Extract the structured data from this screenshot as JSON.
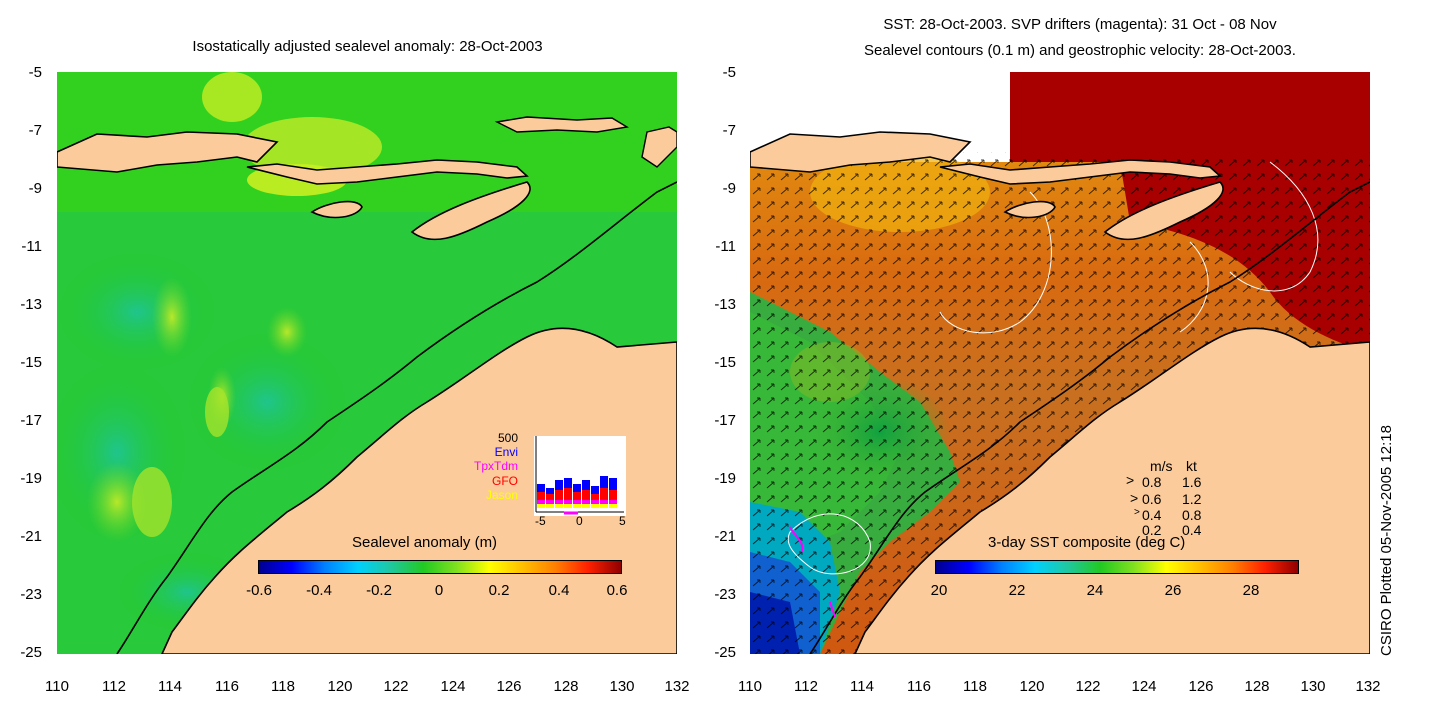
{
  "left_panel": {
    "title": "Isostatically adjusted sealevel anomaly: 28-Oct-2003",
    "y_ticks": [
      "-5",
      "-7",
      "-9",
      "-11",
      "-13",
      "-15",
      "-17",
      "-19",
      "-21",
      "-23",
      "-25"
    ],
    "x_ticks": [
      "110",
      "112",
      "114",
      "116",
      "118",
      "120",
      "122",
      "124",
      "126",
      "128",
      "130",
      "132"
    ],
    "colorbar": {
      "label": "Sealevel anomaly (m)",
      "ticks": [
        "-0.6",
        "-0.4",
        "-0.2",
        "0",
        "0.2",
        "0.4",
        "0.6"
      ],
      "range": [
        -0.6,
        0.6
      ]
    },
    "inset": {
      "ymax_label": "500",
      "satellites": [
        {
          "name": "Envi",
          "color": "#0000ff"
        },
        {
          "name": "TpxTdm",
          "color": "#ff00ff"
        },
        {
          "name": "GFO",
          "color": "#ff0000"
        },
        {
          "name": "Jason",
          "color": "#ffff00"
        }
      ],
      "x_ticks": [
        "-5",
        "0",
        "5"
      ]
    }
  },
  "right_panel": {
    "title_line1": "SST: 28-Oct-2003. SVP drifters (magenta): 31 Oct - 08 Nov",
    "title_line2": "Sealevel contours (0.1 m) and geostrophic velocity: 28-Oct-2003.",
    "y_ticks": [
      "-5",
      "-7",
      "-9",
      "-11",
      "-13",
      "-15",
      "-17",
      "-19",
      "-21",
      "-23",
      "-25"
    ],
    "x_ticks": [
      "110",
      "112",
      "114",
      "116",
      "118",
      "120",
      "122",
      "124",
      "126",
      "128",
      "130",
      "132"
    ],
    "colorbar": {
      "label": "3-day SST composite (deg C)",
      "ticks": [
        "20",
        "22",
        "24",
        "26",
        "28"
      ],
      "range": [
        20,
        29.5
      ]
    },
    "velocity_legend": {
      "header_ms": "m/s",
      "header_kt": "kt",
      "rows": [
        {
          "ms": "0.8",
          "kt": "1.6"
        },
        {
          "ms": "0.6",
          "kt": "1.2"
        },
        {
          "ms": "0.4",
          "kt": "0.8"
        },
        {
          "ms": "0.2",
          "kt": "0.4"
        }
      ]
    }
  },
  "credit": "CSIRO Plotted 05-Nov-2005 12:18",
  "colors": {
    "land": "#fccb9b",
    "ocean_mid": "#22c922",
    "warm_sst": "#a80000"
  }
}
